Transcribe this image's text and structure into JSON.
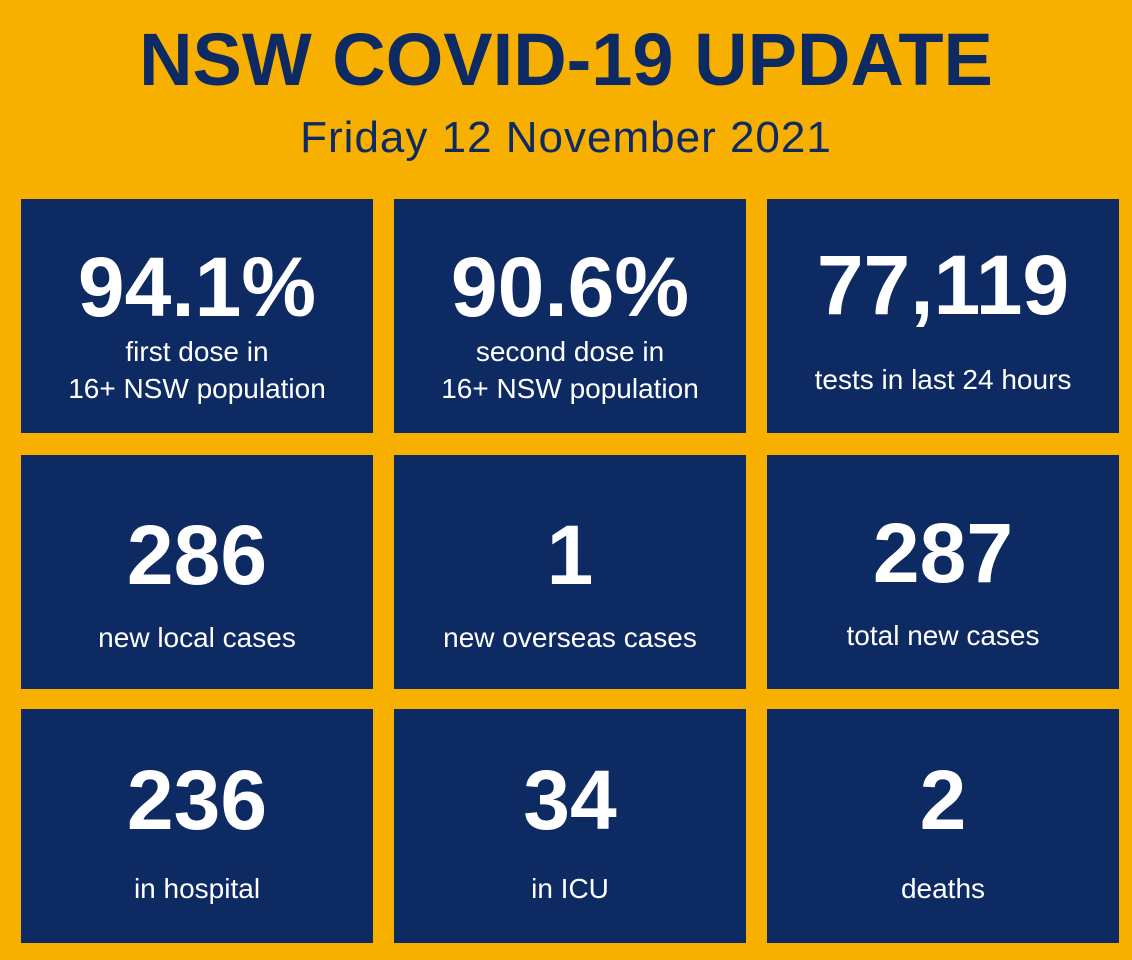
{
  "header": {
    "title": "NSW COVID-19 UPDATE",
    "subtitle": "Friday 12 November 2021"
  },
  "tiles": [
    {
      "value": "94.1%",
      "label": [
        "first dose in",
        "16+ NSW population"
      ]
    },
    {
      "value": "90.6%",
      "label": [
        "second dose in",
        "16+ NSW population"
      ]
    },
    {
      "value": "77,119",
      "label": [
        "tests in last 24 hours"
      ]
    },
    {
      "value": "286",
      "label": [
        "new local cases"
      ]
    },
    {
      "value": "1",
      "label": [
        "new overseas cases"
      ]
    },
    {
      "value": "287",
      "label": [
        "total new cases"
      ]
    },
    {
      "value": "236",
      "label": [
        "in hospital"
      ]
    },
    {
      "value": "34",
      "label": [
        "in ICU"
      ]
    },
    {
      "value": "2",
      "label": [
        "deaths"
      ]
    }
  ]
}
